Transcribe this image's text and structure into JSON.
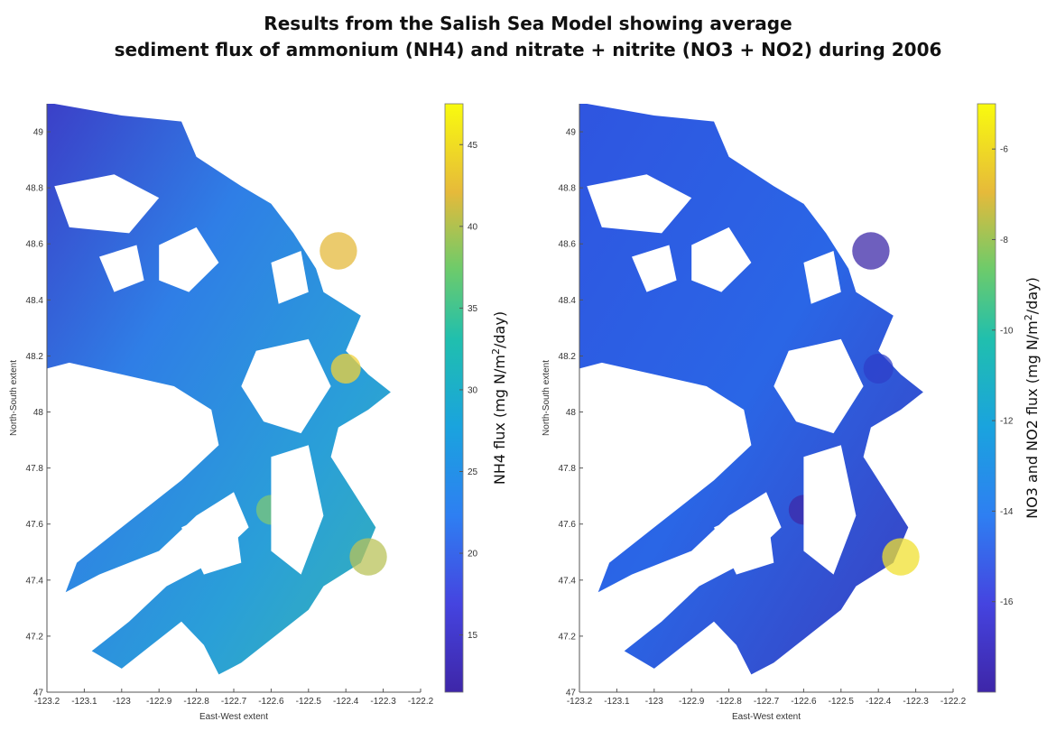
{
  "title": {
    "line1": "Results from the Salish Sea Model showing average",
    "line2": "sediment flux of ammonium (NH4) and nitrate + nitrite (NO3 + NO2) during 2006"
  },
  "colors": {
    "land": "#ffffff",
    "low": "#3e26a8",
    "mid": "#2e99d6",
    "mid2": "#26bca8",
    "high": "#f9fb0e"
  },
  "chart_data": [
    {
      "type": "heatmap",
      "panel": "left",
      "xlabel": "East-West extent",
      "ylabel": "North-South extent",
      "xlim": [
        -123.2,
        -122.2
      ],
      "ylim": [
        47.0,
        49.1
      ],
      "xticks": [
        "-123.2",
        "-123.1",
        "-123",
        "-122.9",
        "-122.8",
        "-122.7",
        "-122.6",
        "-122.5",
        "-122.4",
        "-122.3",
        "-122.2"
      ],
      "yticks": [
        "47",
        "47.2",
        "47.4",
        "47.6",
        "47.8",
        "48",
        "48.2",
        "48.4",
        "48.6",
        "48.8",
        "49"
      ],
      "colorbar": {
        "label_prefix": "NH4 flux (mg N/m",
        "label_sup": "2",
        "label_suffix": "/day)",
        "range": [
          11.5,
          47.5
        ],
        "ticks": [
          "15",
          "20",
          "25",
          "30",
          "35",
          "40",
          "45"
        ]
      }
    },
    {
      "type": "heatmap",
      "panel": "right",
      "xlabel": "East-West extent",
      "ylabel": "North-South extent",
      "xlim": [
        -123.2,
        -122.2
      ],
      "ylim": [
        47.0,
        49.1
      ],
      "xticks": [
        "-123.2",
        "-123.1",
        "-123",
        "-122.9",
        "-122.8",
        "-122.7",
        "-122.6",
        "-122.5",
        "-122.4",
        "-122.3",
        "-122.2"
      ],
      "yticks": [
        "47",
        "47.2",
        "47.4",
        "47.6",
        "47.8",
        "48",
        "48.2",
        "48.4",
        "48.6",
        "48.8",
        "49"
      ],
      "colorbar": {
        "label_prefix": "NO3 and NO2 flux (mg N/m",
        "label_sup": "2",
        "label_suffix": "/day)",
        "range": [
          -18,
          -5
        ],
        "ticks": [
          "-6",
          "-8",
          "-10",
          "-12",
          "-14",
          "-16"
        ]
      }
    }
  ]
}
